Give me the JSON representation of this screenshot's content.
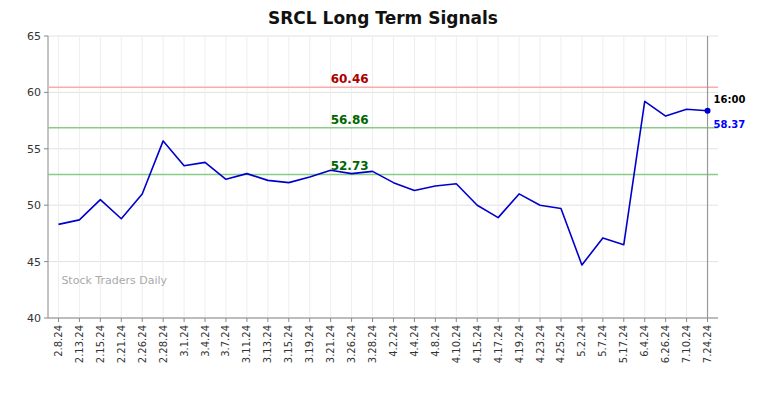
{
  "chart_data": {
    "type": "line",
    "title": "SRCL Long Term Signals",
    "categories": [
      "2.8.24",
      "2.13.24",
      "2.15.24",
      "2.21.24",
      "2.26.24",
      "2.28.24",
      "3.1.24",
      "3.4.24",
      "3.7.24",
      "3.11.24",
      "3.13.24",
      "3.15.24",
      "3.19.24",
      "3.21.24",
      "3.26.24",
      "3.28.24",
      "4.2.24",
      "4.4.24",
      "4.8.24",
      "4.10.24",
      "4.15.24",
      "4.17.24",
      "4.19.24",
      "4.23.24",
      "4.25.24",
      "5.2.24",
      "5.7.24",
      "5.17.24",
      "6.4.24",
      "6.26.24",
      "7.10.24",
      "7.24.24"
    ],
    "values": [
      48.3,
      48.7,
      50.5,
      48.8,
      51.0,
      55.7,
      53.5,
      53.8,
      52.3,
      52.8,
      52.2,
      52.0,
      52.5,
      53.1,
      52.8,
      53.0,
      52.0,
      51.3,
      51.7,
      51.9,
      50.0,
      48.9,
      51.0,
      50.0,
      49.7,
      44.7,
      47.1,
      46.5,
      59.2,
      57.9,
      58.5,
      58.37
    ],
    "color": "#0000cc",
    "reference_lines": [
      {
        "value": 60.46,
        "label": "60.46",
        "color": "#ffaaaa",
        "label_color": "#aa0000"
      },
      {
        "value": 56.86,
        "label": "56.86",
        "color": "#88cc88",
        "label_color": "#006600"
      },
      {
        "value": 52.73,
        "label": "52.73",
        "color": "#88cc88",
        "label_color": "#006600"
      }
    ],
    "watermark": "Stock Traders Daily",
    "watermark_color": "#aaaaaa",
    "last_time": "16:00",
    "last_time_color": "#000000",
    "last_price": "58.37",
    "last_price_color": "#0000ff",
    "ylim": [
      40,
      65
    ],
    "yticks": [
      40,
      45,
      50,
      55,
      60,
      65
    ],
    "grid": true
  }
}
